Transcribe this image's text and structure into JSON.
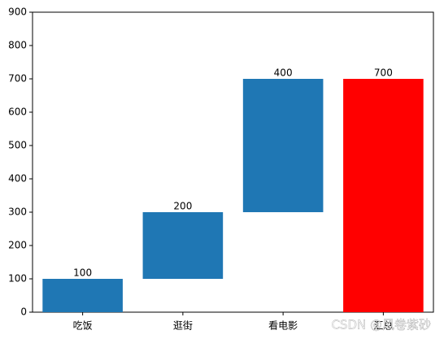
{
  "chart_data": {
    "type": "waterfall",
    "categories": [
      "吃饭",
      "逛街",
      "看电影",
      "汇总"
    ],
    "values": [
      100,
      200,
      400,
      700
    ],
    "measures": [
      "relative",
      "relative",
      "relative",
      "total"
    ],
    "colors": [
      "#1f77b4",
      "#1f77b4",
      "#1f77b4",
      "#ff0000"
    ],
    "ylim": [
      0,
      900
    ],
    "yticks": [
      0,
      100,
      200,
      300,
      400,
      500,
      600,
      700,
      800,
      900
    ],
    "watermark": "CSDN @风卷紫砂"
  }
}
